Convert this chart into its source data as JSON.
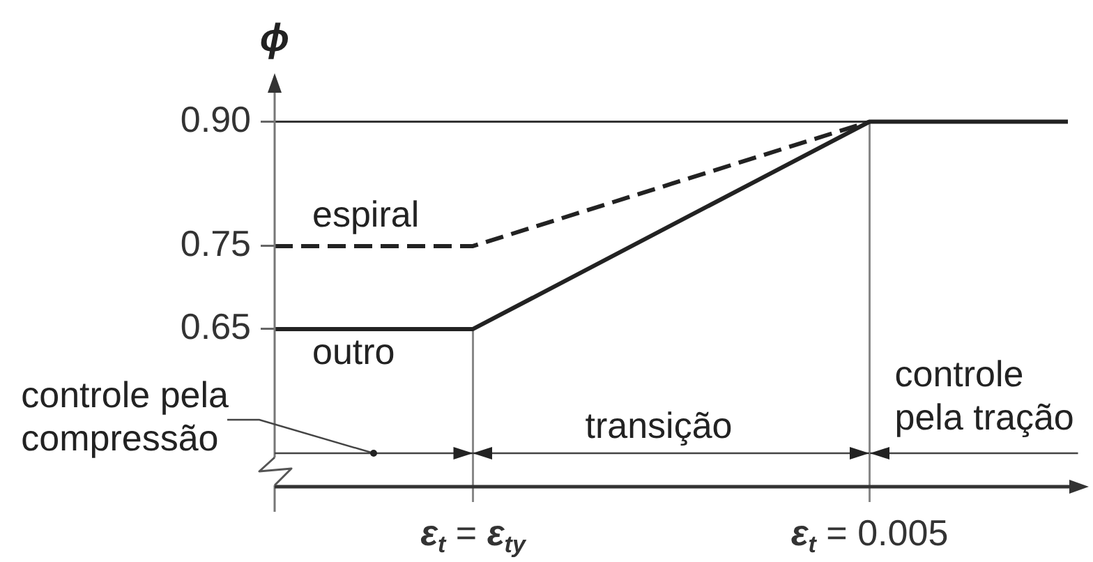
{
  "chart_data": {
    "type": "line",
    "ylabel": "ϕ",
    "categories": [
      null,
      "ε$_{t}$ = ε$_{ty}$",
      null,
      "ε$_{t}$ = 0.005",
      null
    ],
    "series": [
      {
        "name": "espiral",
        "color": "#222222",
        "line_style": "dashed",
        "values": [
          0.75,
          0.75,
          0.825,
          0.9,
          null
        ]
      },
      {
        "name": "outro",
        "color": "#222222",
        "line_style": "solid",
        "values": [
          0.65,
          0.65,
          0.775,
          0.9,
          0.9
        ]
      }
    ],
    "ylim": [
      0.46,
      0.95
    ],
    "yticks": [
      0.65,
      0.75,
      {
        "value": 0.9,
        "label": "0.90"
      }
    ],
    "ref_lines": [
      {
        "axis": "y",
        "value": 0.9,
        "color": "#333333"
      },
      {
        "axis": "x",
        "value": "ε$_{t}$ = ε$_{ty}$",
        "color": "#888888"
      },
      {
        "axis": "x",
        "value": "ε$_{t}$ = 0.005",
        "color": "#888888"
      }
    ],
    "annotations": [
      "controle pela compressão",
      "transição",
      "controle pela tração"
    ]
  }
}
